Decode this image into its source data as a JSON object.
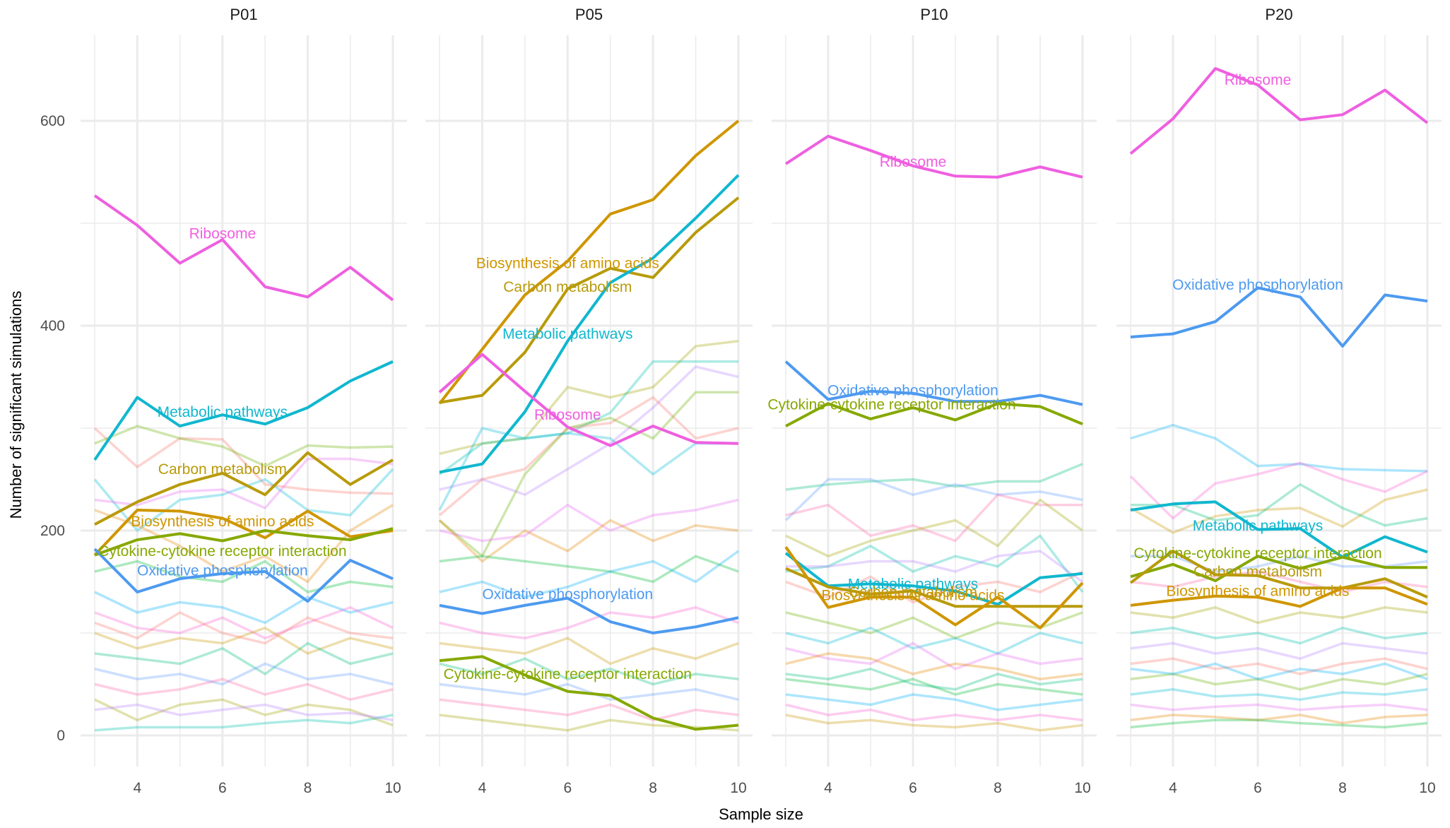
{
  "chart_data": {
    "type": "line",
    "xlabel": "Sample size",
    "ylabel": "Number of significant simulations",
    "x": [
      3,
      4,
      5,
      6,
      7,
      8,
      9,
      10
    ],
    "x_ticks": [
      "4",
      "6",
      "8",
      "10"
    ],
    "y_ticks": [
      "0",
      "200",
      "400",
      "600"
    ],
    "xlim": [
      3,
      10
    ],
    "ylim": [
      0,
      680
    ],
    "grid": true,
    "legend": "none (direct labels)",
    "colors": {
      "Ribosome": "#ef5fe0",
      "Metabolic pathways": "#10b7cf",
      "Carbon metabolism": "#b89b0b",
      "Biosynthesis of amino acids": "#cf9600",
      "Cytokine-cytokine receptor interaction": "#86a800",
      "Oxidative phosphorylation": "#4d9af0"
    },
    "background_colors": [
      "#f8766d",
      "#e58700",
      "#c99800",
      "#a3a500",
      "#6bb100",
      "#00ba38",
      "#00bf7d",
      "#00c0af",
      "#00bcd8",
      "#00b0f6",
      "#619cff",
      "#b983ff",
      "#e76bf3",
      "#fd61d1",
      "#ff67a4"
    ],
    "panels": [
      {
        "title": "P01",
        "highlighted": [
          {
            "name": "Ribosome",
            "values": [
              527,
              498,
              461,
              484,
              438,
              428,
              457,
              425
            ],
            "label_x": 6,
            "label_y": 490
          },
          {
            "name": "Metabolic pathways",
            "values": [
              269,
              330,
              302,
              313,
              304,
              320,
              346,
              365
            ],
            "label_x": 6,
            "label_y": 316
          },
          {
            "name": "Carbon metabolism",
            "values": [
              206,
              228,
              245,
              256,
              235,
              276,
              245,
              269
            ],
            "label_x": 6,
            "label_y": 260
          },
          {
            "name": "Biosynthesis of amino acids",
            "values": [
              176,
              220,
              219,
              212,
              193,
              219,
              194,
              200
            ],
            "label_x": 6,
            "label_y": 209
          },
          {
            "name": "Cytokine-cytokine receptor interaction",
            "values": [
              176,
              191,
              197,
              190,
              200,
              195,
              191,
              202
            ],
            "label_x": 6,
            "label_y": 180
          },
          {
            "name": "Oxidative phosphorylation",
            "values": [
              182,
              140,
              153,
              158,
              160,
              131,
              171,
              153
            ],
            "label_x": 6,
            "label_y": 161
          }
        ],
        "background": [
          [
            300,
            262,
            290,
            289,
            245,
            240,
            237,
            236
          ],
          [
            285,
            302,
            290,
            282,
            263,
            283,
            281,
            282
          ],
          [
            250,
            200,
            230,
            235,
            250,
            220,
            215,
            260
          ],
          [
            230,
            225,
            238,
            240,
            222,
            270,
            270,
            265
          ],
          [
            220,
            205,
            185,
            160,
            175,
            150,
            200,
            225
          ],
          [
            160,
            170,
            155,
            150,
            170,
            140,
            150,
            145
          ],
          [
            140,
            120,
            130,
            125,
            110,
            135,
            120,
            130
          ],
          [
            120,
            105,
            100,
            115,
            95,
            110,
            125,
            105
          ],
          [
            100,
            85,
            95,
            90,
            105,
            80,
            95,
            85
          ],
          [
            80,
            75,
            70,
            85,
            60,
            90,
            70,
            80
          ],
          [
            65,
            55,
            60,
            50,
            70,
            55,
            60,
            50
          ],
          [
            50,
            40,
            45,
            55,
            40,
            50,
            35,
            45
          ],
          [
            35,
            15,
            30,
            35,
            20,
            30,
            25,
            10
          ],
          [
            5,
            8,
            8,
            8,
            12,
            15,
            12,
            20
          ],
          [
            25,
            30,
            20,
            25,
            30,
            20,
            22,
            15
          ],
          [
            110,
            95,
            120,
            100,
            90,
            115,
            100,
            95
          ]
        ]
      },
      {
        "title": "P05",
        "highlighted": [
          {
            "name": "Biosynthesis of amino acids",
            "values": [
              324,
              377,
              430,
              463,
              509,
              523,
              566,
              600
            ],
            "label_x": 6,
            "label_y": 461
          },
          {
            "name": "Carbon metabolism",
            "values": [
              325,
              332,
              374,
              436,
              456,
              447,
              491,
              525
            ],
            "label_x": 6,
            "label_y": 438
          },
          {
            "name": "Metabolic pathways",
            "values": [
              257,
              265,
              316,
              385,
              442,
              466,
              505,
              547
            ],
            "label_x": 6,
            "label_y": 392
          },
          {
            "name": "Ribosome",
            "values": [
              335,
              372,
              336,
              301,
              283,
              302,
              286,
              285
            ],
            "label_x": 6,
            "label_y": 313
          },
          {
            "name": "Oxidative phosphorylation",
            "values": [
              127,
              119,
              127,
              134,
              111,
              100,
              106,
              115
            ],
            "label_x": 6,
            "label_y": 138
          },
          {
            "name": "Cytokine-cytokine receptor interaction",
            "values": [
              73,
              77,
              59,
              43,
              39,
              17,
              6,
              10
            ],
            "label_x": 6,
            "label_y": 60
          }
        ],
        "background": [
          [
            275,
            285,
            290,
            340,
            330,
            340,
            380,
            385
          ],
          [
            255,
            285,
            290,
            295,
            315,
            365,
            365,
            365
          ],
          [
            240,
            250,
            235,
            260,
            285,
            320,
            360,
            350
          ],
          [
            215,
            250,
            260,
            300,
            305,
            330,
            290,
            300
          ],
          [
            210,
            175,
            255,
            300,
            310,
            290,
            335,
            335
          ],
          [
            220,
            300,
            290,
            295,
            290,
            255,
            285,
            285
          ],
          [
            200,
            190,
            195,
            225,
            200,
            215,
            220,
            230
          ],
          [
            210,
            170,
            200,
            180,
            210,
            190,
            205,
            200
          ],
          [
            170,
            175,
            170,
            165,
            160,
            150,
            175,
            160
          ],
          [
            140,
            150,
            135,
            145,
            160,
            170,
            150,
            180
          ],
          [
            110,
            100,
            95,
            105,
            120,
            115,
            125,
            110
          ],
          [
            90,
            85,
            80,
            95,
            70,
            85,
            75,
            90
          ],
          [
            70,
            60,
            75,
            55,
            65,
            50,
            60,
            55
          ],
          [
            50,
            45,
            40,
            50,
            35,
            40,
            45,
            35
          ],
          [
            35,
            30,
            25,
            20,
            30,
            15,
            25,
            20
          ],
          [
            20,
            15,
            10,
            5,
            15,
            10,
            8,
            5
          ]
        ]
      },
      {
        "title": "P10",
        "highlighted": [
          {
            "name": "Ribosome",
            "values": [
              558,
              585,
              571,
              556,
              546,
              545,
              555,
              545
            ],
            "label_x": 6,
            "label_y": 560
          },
          {
            "name": "Oxidative phosphorylation",
            "values": [
              365,
              328,
              336,
              334,
              326,
              326,
              332,
              323
            ],
            "label_x": 6,
            "label_y": 337
          },
          {
            "name": "Cytokine-cytokine receptor interaction",
            "values": [
              302,
              324,
              309,
              320,
              308,
              324,
              321,
              304
            ],
            "label_x": 5.5,
            "label_y": 323
          },
          {
            "name": "Metabolic pathways",
            "values": [
              178,
              146,
              148,
              146,
              141,
              128,
              154,
              158
            ],
            "label_x": 6,
            "label_y": 148
          },
          {
            "name": "Carbon metabolism",
            "values": [
              163,
              145,
              138,
              141,
              126,
              126,
              126,
              126
            ],
            "label_x": 6,
            "label_y": 140
          },
          {
            "name": "Biosynthesis of amino acids",
            "values": [
              184,
              125,
              135,
              135,
              108,
              135,
              105,
              149
            ],
            "label_x": 6,
            "label_y": 137
          }
        ],
        "background": [
          [
            240,
            245,
            248,
            250,
            243,
            248,
            248,
            265
          ],
          [
            210,
            250,
            250,
            235,
            245,
            235,
            238,
            230
          ],
          [
            215,
            225,
            195,
            205,
            190,
            235,
            225,
            225
          ],
          [
            195,
            175,
            190,
            200,
            210,
            185,
            230,
            200
          ],
          [
            160,
            165,
            185,
            160,
            175,
            165,
            195,
            140
          ],
          [
            165,
            165,
            170,
            170,
            160,
            175,
            180,
            150
          ],
          [
            150,
            135,
            155,
            130,
            145,
            150,
            140,
            160
          ],
          [
            120,
            110,
            100,
            115,
            95,
            110,
            105,
            120
          ],
          [
            100,
            90,
            105,
            85,
            95,
            80,
            100,
            90
          ],
          [
            85,
            75,
            70,
            90,
            65,
            80,
            70,
            75
          ],
          [
            70,
            80,
            75,
            60,
            70,
            65,
            55,
            60
          ],
          [
            55,
            50,
            45,
            55,
            40,
            50,
            45,
            40
          ],
          [
            40,
            35,
            30,
            40,
            35,
            25,
            30,
            35
          ],
          [
            30,
            20,
            25,
            15,
            20,
            15,
            20,
            15
          ],
          [
            20,
            12,
            15,
            10,
            8,
            12,
            5,
            10
          ],
          [
            60,
            55,
            65,
            50,
            45,
            60,
            50,
            55
          ]
        ]
      },
      {
        "title": "P20",
        "highlighted": [
          {
            "name": "Ribosome",
            "values": [
              568,
              602,
              651,
              635,
              601,
              606,
              630,
              598
            ],
            "label_x": 6,
            "label_y": 640
          },
          {
            "name": "Oxidative phosphorylation",
            "values": [
              389,
              392,
              404,
              437,
              428,
              380,
              430,
              424
            ],
            "label_x": 6,
            "label_y": 440
          },
          {
            "name": "Metabolic pathways",
            "values": [
              220,
              226,
              228,
              201,
              202,
              174,
              194,
              179
            ],
            "label_x": 6,
            "label_y": 205
          },
          {
            "name": "Cytokine-cytokine receptor interaction",
            "values": [
              155,
              167,
              151,
              175,
              163,
              174,
              164,
              164
            ],
            "label_x": 6,
            "label_y": 178
          },
          {
            "name": "Carbon metabolism",
            "values": [
              149,
              180,
              157,
              156,
              144,
              144,
              153,
              135
            ],
            "label_x": 6,
            "label_y": 160
          },
          {
            "name": "Biosynthesis of amino acids",
            "values": [
              127,
              132,
              136,
              135,
              126,
              144,
              144,
              128
            ],
            "label_x": 6,
            "label_y": 141
          }
        ],
        "background": [
          [
            290,
            303,
            290,
            263,
            265,
            260,
            259,
            258
          ],
          [
            253,
            212,
            246,
            255,
            266,
            250,
            238,
            258
          ],
          [
            222,
            198,
            214,
            220,
            222,
            204,
            230,
            240
          ],
          [
            225,
            225,
            210,
            215,
            245,
            222,
            205,
            212
          ],
          [
            175,
            175,
            160,
            165,
            175,
            165,
            165,
            170
          ],
          [
            150,
            145,
            155,
            160,
            150,
            140,
            150,
            145
          ],
          [
            120,
            115,
            125,
            110,
            120,
            115,
            125,
            120
          ],
          [
            100,
            105,
            95,
            100,
            90,
            105,
            95,
            100
          ],
          [
            85,
            90,
            80,
            85,
            75,
            90,
            85,
            80
          ],
          [
            70,
            75,
            65,
            70,
            60,
            70,
            75,
            65
          ],
          [
            55,
            60,
            50,
            55,
            45,
            55,
            50,
            60
          ],
          [
            40,
            45,
            38,
            40,
            35,
            42,
            40,
            45
          ],
          [
            30,
            25,
            28,
            30,
            25,
            28,
            30,
            25
          ],
          [
            15,
            20,
            18,
            15,
            20,
            12,
            18,
            20
          ],
          [
            8,
            12,
            15,
            15,
            12,
            10,
            8,
            12
          ],
          [
            65,
            60,
            70,
            55,
            65,
            60,
            70,
            55
          ]
        ]
      }
    ]
  }
}
